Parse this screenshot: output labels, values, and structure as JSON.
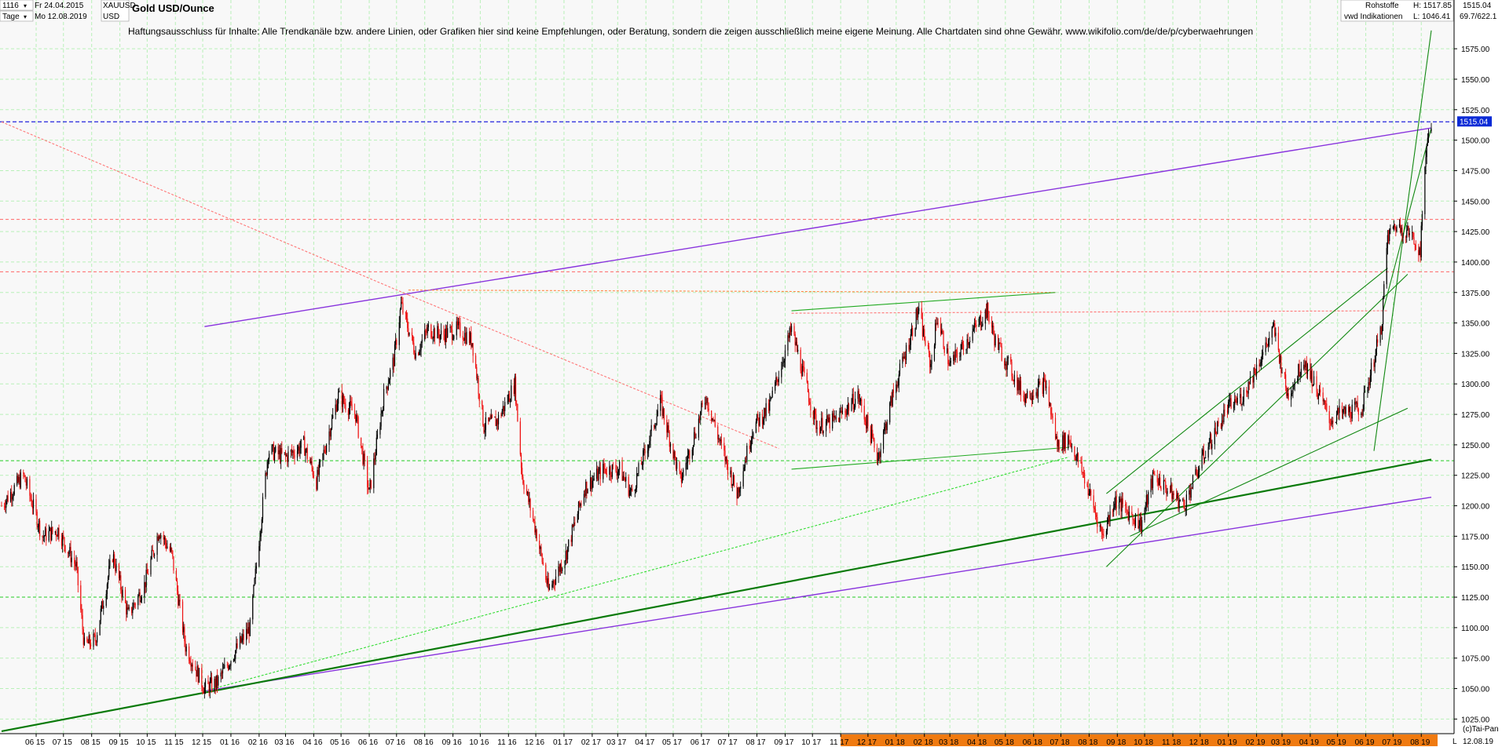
{
  "header": {
    "period": "1116",
    "date_from": "Fr 24.04.2015",
    "interval": "Tage",
    "date_to": "Mo 12.08.2019",
    "symbol": "XAUUSD",
    "currency": "USD",
    "title": "Gold USD/Ounce",
    "disclaimer": "Haftungsausschluss für Inhalte: Alle Trendkanäle bzw. andere Linien, oder Grafiken hier sind keine Empfehlungen, oder Beratung, sondern die zeigen ausschließlich meine eigene Meinung. Alle Chartdaten sind ohne Gewähr.  www.wikifolio.com/de/de/p/cyberwaehrungen",
    "category": "Rohstoffe",
    "source": "vwd Indikationen",
    "high": "H:  1517.85",
    "low": "L:  1046.41",
    "last": "1515.04",
    "range": "69.7/622.1"
  },
  "footer": {
    "copyright": "(c)Tai-Pan",
    "last_date": "12.08.19",
    "scale_letter": "L"
  },
  "colors": {
    "up_candle": "#000000",
    "down_candle": "#ee1111",
    "channel_purple": "#8833dd",
    "trend_green": "#118811",
    "grid": "#b8f0b8",
    "price_line": "#2222dd",
    "label_bg": "#0b2bd6",
    "resistance": "#ff6666",
    "time_bar_orange": "#f07a10"
  },
  "chart_data": {
    "type": "candlestick",
    "title": "Gold USD/Ounce",
    "x_range": [
      "2015-04-24",
      "2019-08-12"
    ],
    "ylim": [
      1013,
      1615
    ],
    "y_ticks": [
      1025,
      1050,
      1075,
      1100,
      1125,
      1150,
      1175,
      1200,
      1225,
      1250,
      1275,
      1300,
      1325,
      1350,
      1375,
      1400,
      1425,
      1450,
      1475,
      1500,
      1525,
      1550,
      1575
    ],
    "x_ticks": [
      "06 15",
      "07 15",
      "08 15",
      "09 15",
      "10 15",
      "11 15",
      "12 15",
      "01 16",
      "02 16",
      "03 16",
      "04 16",
      "05 16",
      "06 16",
      "07 16",
      "08 16",
      "09 16",
      "10 16",
      "11 16",
      "12 16",
      "01 17",
      "02 17",
      "03 17",
      "04 17",
      "05 17",
      "06 17",
      "07 17",
      "08 17",
      "09 17",
      "10 17",
      "11 17",
      "12 17",
      "01 18",
      "02 18",
      "03 18",
      "04 18",
      "05 18",
      "06 18",
      "07 18",
      "08 18",
      "09 18",
      "10 18",
      "11 18",
      "12 18",
      "01 19",
      "02 19",
      "03 19",
      "04 19",
      "05 19",
      "06 19",
      "07 19",
      "08 19"
    ],
    "grid": true,
    "last_price": 1515.04,
    "high": 1517.85,
    "low": 1046.41,
    "price_path": [
      [
        "2015-04-24",
        1200
      ],
      [
        "2015-05-18",
        1225
      ],
      [
        "2015-06-08",
        1175
      ],
      [
        "2015-06-25",
        1180
      ],
      [
        "2015-07-15",
        1150
      ],
      [
        "2015-07-24",
        1085
      ],
      [
        "2015-08-05",
        1090
      ],
      [
        "2015-08-24",
        1160
      ],
      [
        "2015-09-10",
        1110
      ],
      [
        "2015-09-28",
        1135
      ],
      [
        "2015-10-14",
        1180
      ],
      [
        "2015-10-28",
        1160
      ],
      [
        "2015-11-12",
        1085
      ],
      [
        "2015-12-03",
        1050
      ],
      [
        "2015-12-17",
        1055
      ],
      [
        "2016-01-05",
        1080
      ],
      [
        "2016-01-22",
        1100
      ],
      [
        "2016-02-11",
        1245
      ],
      [
        "2016-03-01",
        1240
      ],
      [
        "2016-03-21",
        1250
      ],
      [
        "2016-04-04",
        1220
      ],
      [
        "2016-04-28",
        1290
      ],
      [
        "2016-05-17",
        1275
      ],
      [
        "2016-06-01",
        1210
      ],
      [
        "2016-06-17",
        1290
      ],
      [
        "2016-06-28",
        1320
      ],
      [
        "2016-07-06",
        1365
      ],
      [
        "2016-07-22",
        1325
      ],
      [
        "2016-08-05",
        1345
      ],
      [
        "2016-08-19",
        1340
      ],
      [
        "2016-09-07",
        1345
      ],
      [
        "2016-09-22",
        1335
      ],
      [
        "2016-10-05",
        1265
      ],
      [
        "2016-10-20",
        1270
      ],
      [
        "2016-11-08",
        1300
      ],
      [
        "2016-11-16",
        1225
      ],
      [
        "2016-12-01",
        1180
      ],
      [
        "2016-12-15",
        1130
      ],
      [
        "2017-01-03",
        1160
      ],
      [
        "2017-01-24",
        1215
      ],
      [
        "2017-02-14",
        1230
      ],
      [
        "2017-03-03",
        1230
      ],
      [
        "2017-03-16",
        1210
      ],
      [
        "2017-04-05",
        1255
      ],
      [
        "2017-04-17",
        1285
      ],
      [
        "2017-05-09",
        1220
      ],
      [
        "2017-06-06",
        1290
      ],
      [
        "2017-06-22",
        1250
      ],
      [
        "2017-07-10",
        1210
      ],
      [
        "2017-07-28",
        1265
      ],
      [
        "2017-08-14",
        1280
      ],
      [
        "2017-09-08",
        1345
      ],
      [
        "2017-09-20",
        1310
      ],
      [
        "2017-10-06",
        1265
      ],
      [
        "2017-10-26",
        1270
      ],
      [
        "2017-11-20",
        1290
      ],
      [
        "2017-12-12",
        1240
      ],
      [
        "2017-12-28",
        1290
      ],
      [
        "2018-01-25",
        1360
      ],
      [
        "2018-02-08",
        1315
      ],
      [
        "2018-02-15",
        1355
      ],
      [
        "2018-03-01",
        1315
      ],
      [
        "2018-04-11",
        1360
      ],
      [
        "2018-04-20",
        1335
      ],
      [
        "2018-05-08",
        1310
      ],
      [
        "2018-05-21",
        1290
      ],
      [
        "2018-06-14",
        1300
      ],
      [
        "2018-06-27",
        1250
      ],
      [
        "2018-07-10",
        1255
      ],
      [
        "2018-07-26",
        1225
      ],
      [
        "2018-08-16",
        1175
      ],
      [
        "2018-08-29",
        1205
      ],
      [
        "2018-09-27",
        1185
      ],
      [
        "2018-10-11",
        1225
      ],
      [
        "2018-11-13",
        1200
      ],
      [
        "2018-12-07",
        1245
      ],
      [
        "2018-12-31",
        1280
      ],
      [
        "2019-01-17",
        1290
      ],
      [
        "2019-02-20",
        1345
      ],
      [
        "2019-03-07",
        1290
      ],
      [
        "2019-03-25",
        1320
      ],
      [
        "2019-04-23",
        1270
      ],
      [
        "2019-05-02",
        1275
      ],
      [
        "2019-05-28",
        1280
      ],
      [
        "2019-06-18",
        1345
      ],
      [
        "2019-06-25",
        1420
      ],
      [
        "2019-07-03",
        1430
      ],
      [
        "2019-07-17",
        1425
      ],
      [
        "2019-07-31",
        1410
      ],
      [
        "2019-08-07",
        1500
      ],
      [
        "2019-08-12",
        1515
      ]
    ],
    "lines": [
      {
        "kind": "channel-upper",
        "color": "purple",
        "from": [
          "2015-12-03",
          1347
        ],
        "to": [
          "2019-08-12",
          1510
        ]
      },
      {
        "kind": "channel-lower",
        "color": "purple",
        "from": [
          "2015-12-03",
          1048
        ],
        "to": [
          "2019-08-12",
          1207
        ]
      },
      {
        "kind": "trend-support",
        "color": "green-bold",
        "from": [
          "2015-04-24",
          1015
        ],
        "to": [
          "2019-08-12",
          1238
        ]
      },
      {
        "kind": "resistance",
        "color": "red-dashed",
        "level": 1435
      },
      {
        "kind": "resistance",
        "color": "red-dashed",
        "level": 1392
      },
      {
        "kind": "support",
        "color": "green-dashed",
        "level": 1237
      },
      {
        "kind": "support",
        "color": "green-dashed",
        "level": 1125
      },
      {
        "kind": "last-price",
        "color": "blue-dashed",
        "level": 1515.04
      }
    ]
  }
}
